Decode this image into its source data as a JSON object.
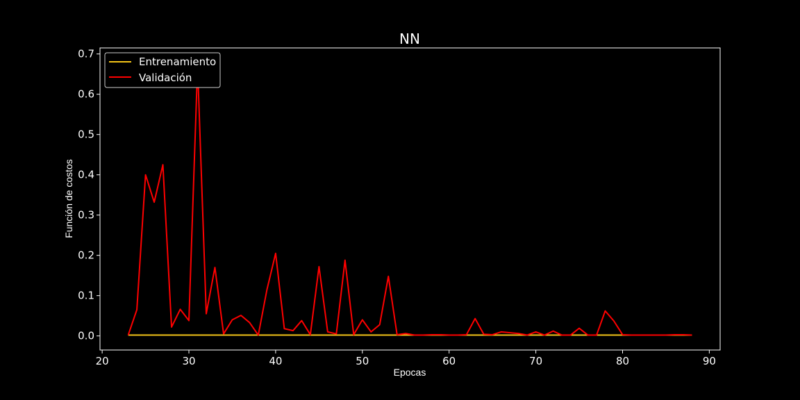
{
  "chart_data": {
    "type": "line",
    "title": "NN",
    "xlabel": "Epocas",
    "ylabel": "Función de costos",
    "xlim": [
      19.75,
      91.25
    ],
    "ylim": [
      -0.035,
      0.715
    ],
    "xticks": [
      20,
      30,
      40,
      50,
      60,
      70,
      80,
      90
    ],
    "yticks": [
      0.0,
      0.1,
      0.2,
      0.3,
      0.4,
      0.5,
      0.6,
      0.7
    ],
    "xtick_labels": [
      "20",
      "30",
      "40",
      "50",
      "60",
      "70",
      "80",
      "90"
    ],
    "ytick_labels": [
      "0.0",
      "0.1",
      "0.2",
      "0.3",
      "0.4",
      "0.5",
      "0.6",
      "0.7"
    ],
    "legend_position": "upper-left",
    "x": [
      23,
      24,
      25,
      26,
      27,
      28,
      29,
      30,
      31,
      32,
      33,
      34,
      35,
      36,
      37,
      38,
      39,
      40,
      41,
      42,
      43,
      44,
      45,
      46,
      47,
      48,
      49,
      50,
      51,
      52,
      53,
      54,
      55,
      56,
      57,
      58,
      59,
      60,
      61,
      62,
      63,
      64,
      65,
      66,
      67,
      68,
      69,
      70,
      71,
      72,
      73,
      74,
      75,
      76,
      77,
      78,
      79,
      80,
      81,
      82,
      83,
      84,
      85,
      86,
      87,
      88
    ],
    "series": [
      {
        "name": "Entrenamiento",
        "color": "#f5c518",
        "values": [
          0.002,
          0.002,
          0.002,
          0.002,
          0.002,
          0.002,
          0.002,
          0.002,
          0.002,
          0.002,
          0.002,
          0.002,
          0.002,
          0.002,
          0.002,
          0.002,
          0.002,
          0.002,
          0.002,
          0.002,
          0.002,
          0.002,
          0.002,
          0.002,
          0.002,
          0.002,
          0.002,
          0.002,
          0.002,
          0.002,
          0.002,
          0.002,
          0.002,
          0.002,
          0.002,
          0.002,
          0.002,
          0.002,
          0.002,
          0.002,
          0.002,
          0.002,
          0.002,
          0.002,
          0.002,
          0.002,
          0.002,
          0.002,
          0.002,
          0.002,
          0.002,
          0.002,
          0.002,
          0.002,
          0.002,
          0.002,
          0.002,
          0.002,
          0.002,
          0.002,
          0.002,
          0.002,
          0.002,
          0.002,
          0.002,
          0.002
        ]
      },
      {
        "name": "Validación",
        "color": "#ff0000",
        "values": [
          0.002,
          0.065,
          0.4,
          0.332,
          0.425,
          0.022,
          0.066,
          0.038,
          0.67,
          0.055,
          0.17,
          0.005,
          0.04,
          0.051,
          0.033,
          0.002,
          0.115,
          0.205,
          0.018,
          0.013,
          0.038,
          0.003,
          0.172,
          0.01,
          0.005,
          0.188,
          0.003,
          0.04,
          0.01,
          0.028,
          0.148,
          0.003,
          0.006,
          0.002,
          0.002,
          0.003,
          0.003,
          0.002,
          0.002,
          0.003,
          0.043,
          0.004,
          0.003,
          0.01,
          0.008,
          0.006,
          0.002,
          0.01,
          0.002,
          0.012,
          0.002,
          0.002,
          0.019,
          0.002,
          0.002,
          0.062,
          0.037,
          0.003,
          0.002,
          0.002,
          0.002,
          0.002,
          0.002,
          0.003,
          0.003,
          0.002
        ]
      }
    ]
  }
}
